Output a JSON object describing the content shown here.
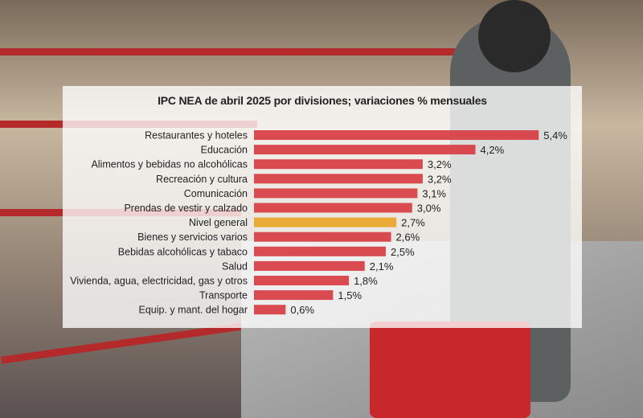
{
  "chart_data": {
    "type": "bar",
    "orientation": "horizontal",
    "title": "IPC NEA de abril 2025 por divisiones; variaciones % mensuales",
    "categories": [
      "Restaurantes y hoteles",
      "Educación",
      "Alimentos y bebidas no alcohólicas",
      "Recreación y cultura",
      "Comunicación",
      "Prendas de vestir y calzado",
      "Nivel general",
      "Bienes y servicios varios",
      "Bebidas alcohólicas y tabaco",
      "Salud",
      "Vivienda, agua, electricidad, gas y otros",
      "Transporte",
      "Equip. y mant. del hogar"
    ],
    "values": [
      5.4,
      4.2,
      3.2,
      3.2,
      3.1,
      3.0,
      2.7,
      2.6,
      2.5,
      2.1,
      1.8,
      1.5,
      0.6
    ],
    "value_labels": [
      "5,4%",
      "4,2%",
      "3,2%",
      "3,2%",
      "3,1%",
      "3,0%",
      "2,7%",
      "2,6%",
      "2,5%",
      "2,1%",
      "1,8%",
      "1,5%",
      "0,6%"
    ],
    "highlight": "Nivel general",
    "colors": {
      "bar": "#d6343a",
      "highlight": "#e8a21e"
    },
    "xlabel": "",
    "ylabel": "",
    "xlim": [
      0,
      5.4
    ],
    "grid": false
  }
}
